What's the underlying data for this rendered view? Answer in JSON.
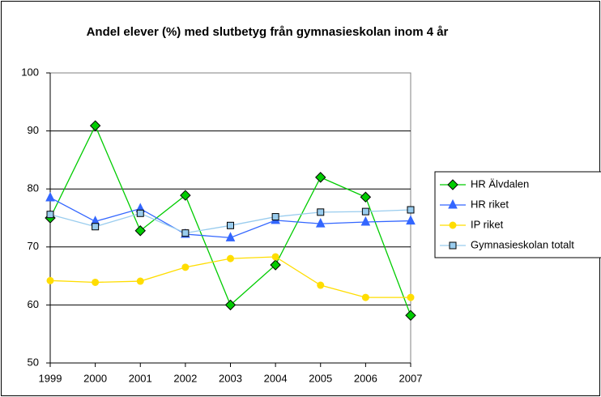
{
  "chart_data": {
    "type": "line",
    "title": "Andel elever (%) med slutbetyg från gymnasieskolan inom 4 år",
    "categories": [
      "1999",
      "2000",
      "2001",
      "2002",
      "2003",
      "2004",
      "2005",
      "2006",
      "2007"
    ],
    "series": [
      {
        "name": "HR Älvdalen",
        "color": "#00cc00",
        "marker": "diamond",
        "values": [
          75.0,
          90.9,
          72.8,
          78.9,
          60.0,
          66.9,
          82.0,
          78.6,
          58.2
        ]
      },
      {
        "name": "HR riket",
        "color": "#3366ff",
        "marker": "triangle",
        "values": [
          78.5,
          74.4,
          76.6,
          72.2,
          71.6,
          74.6,
          74.0,
          74.3,
          74.5
        ]
      },
      {
        "name": "IP riket",
        "color": "#ffdd00",
        "marker": "circle",
        "values": [
          64.2,
          63.9,
          64.1,
          66.5,
          68.0,
          68.3,
          63.4,
          61.3,
          61.3
        ]
      },
      {
        "name": "Gymnasieskolan totalt",
        "color": "#99ccee",
        "marker": "square",
        "values": [
          75.6,
          73.5,
          75.8,
          72.4,
          73.7,
          75.2,
          76.0,
          76.1,
          76.4
        ]
      }
    ],
    "ylim": [
      50,
      100
    ],
    "yticks": [
      50,
      60,
      70,
      80,
      90,
      100
    ],
    "grid": true,
    "legend": "right"
  }
}
